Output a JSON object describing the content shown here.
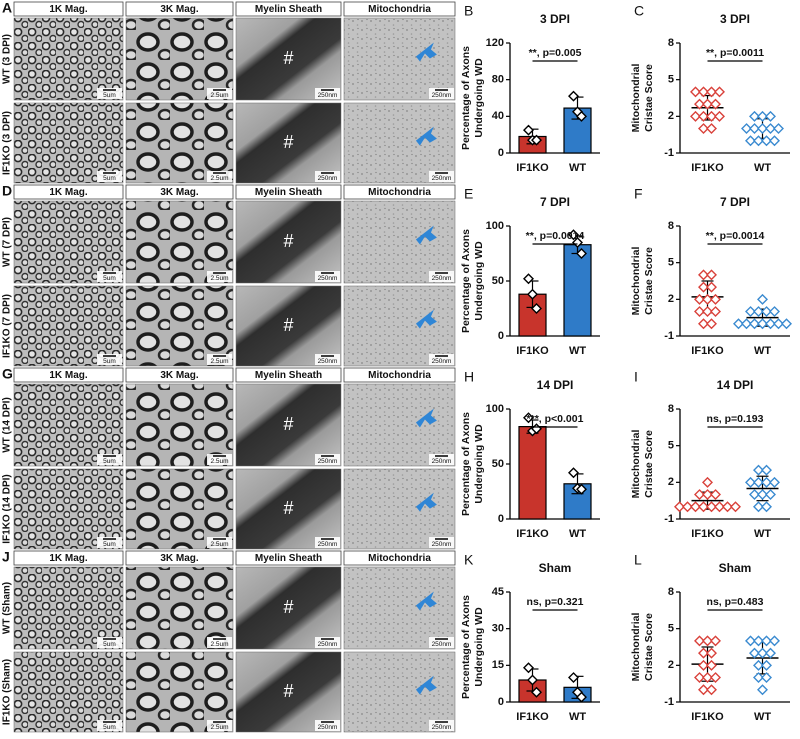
{
  "micrograph_panels": [
    {
      "letter": "A",
      "rows": [
        "WT (3 DPI)",
        "IF1KO (3 DPI)"
      ]
    },
    {
      "letter": "D",
      "rows": [
        "WT (7 DPI)",
        "IF1KO (7 DPI)"
      ]
    },
    {
      "letter": "G",
      "rows": [
        "WT (14 DPI)",
        "IF1KO (14 DPI)"
      ]
    },
    {
      "letter": "J",
      "rows": [
        "WT (Sham)",
        "IF1KO (Sham)"
      ]
    }
  ],
  "column_headers": [
    "1K Mag.",
    "3K Mag.",
    "Myelin Sheath",
    "Mitochondria"
  ],
  "scale_bars": [
    "5um",
    "2.5um",
    "250nm",
    "250nm"
  ],
  "myelin_marker": "#",
  "chart_data": [
    {
      "type": "bar",
      "letter": "B",
      "title": "3 DPI",
      "ylabel": [
        "Percentage of Axons",
        "Undergoing WD"
      ],
      "categories": [
        "IF1KO",
        "WT"
      ],
      "colors": [
        "#c8342c",
        "#2f7bc8"
      ],
      "values": [
        18,
        49
      ],
      "errors": [
        8,
        12
      ],
      "points": [
        [
          25,
          14,
          14
        ],
        [
          62,
          45,
          40
        ]
      ],
      "annotation": "**, p=0.005",
      "ylim": [
        0,
        120
      ],
      "yticks": [
        0,
        40,
        80,
        120
      ]
    },
    {
      "type": "scatter",
      "letter": "C",
      "title": "3 DPI",
      "ylabel": [
        "Mitochondrial",
        "Cristae Score"
      ],
      "categories": [
        "IF1KO",
        "WT"
      ],
      "colors": [
        "#d9413a",
        "#3a8ad0"
      ],
      "values": [
        2.7,
        1.0
      ],
      "errors": [
        1.0,
        0.8
      ],
      "points": [
        [
          4,
          4,
          4,
          4,
          3,
          3,
          3,
          2,
          2,
          2,
          2,
          1,
          1
        ],
        [
          2,
          2,
          2,
          1,
          1,
          1,
          1,
          1,
          0,
          0,
          0,
          0
        ]
      ],
      "annotation": "**, p=0.0011",
      "ylim": [
        -1,
        8
      ],
      "yticks": [
        -1,
        2,
        5,
        8
      ]
    },
    {
      "type": "bar",
      "letter": "E",
      "title": "7 DPI",
      "ylabel": [
        "Percentage of Axons",
        "Undergoing WD"
      ],
      "categories": [
        "IF1KO",
        "WT"
      ],
      "colors": [
        "#c8342c",
        "#2f7bc8"
      ],
      "values": [
        38,
        83
      ],
      "errors": [
        12,
        8
      ],
      "points": [
        [
          52,
          38,
          25
        ],
        [
          92,
          85,
          75
        ]
      ],
      "annotation": "**, p=0.0014",
      "ylim": [
        0,
        100
      ],
      "yticks": [
        0,
        50,
        100
      ]
    },
    {
      "type": "scatter",
      "letter": "F",
      "title": "7 DPI",
      "ylabel": [
        "Mitochondrial",
        "Cristae Score"
      ],
      "categories": [
        "IF1KO",
        "WT"
      ],
      "colors": [
        "#d9413a",
        "#3a8ad0"
      ],
      "values": [
        2.2,
        0.5
      ],
      "errors": [
        1.3,
        0.7
      ],
      "points": [
        [
          4,
          4,
          3,
          3,
          2,
          2,
          2,
          1,
          1,
          1,
          0,
          0
        ],
        [
          2,
          1,
          1,
          1,
          1,
          0,
          0,
          0,
          0,
          0,
          0,
          0
        ]
      ],
      "annotation": "**, p=0.0014",
      "ylim": [
        -1,
        8
      ],
      "yticks": [
        -1,
        2,
        5,
        8
      ]
    },
    {
      "type": "bar",
      "letter": "H",
      "title": "14 DPI",
      "ylabel": [
        "Percentage of Axons",
        "Undergoing WD"
      ],
      "categories": [
        "IF1KO",
        "WT"
      ],
      "colors": [
        "#c8342c",
        "#2f7bc8"
      ],
      "values": [
        84,
        32
      ],
      "errors": [
        6,
        9
      ],
      "points": [
        [
          92,
          80,
          82
        ],
        [
          42,
          28,
          27
        ]
      ],
      "annotation": "***, p<0.001",
      "ylim": [
        0,
        100
      ],
      "yticks": [
        0,
        50,
        100
      ]
    },
    {
      "type": "scatter",
      "letter": "I",
      "title": "14 DPI",
      "ylabel": [
        "Mitochondrial",
        "Cristae Score"
      ],
      "categories": [
        "IF1KO",
        "WT"
      ],
      "colors": [
        "#d9413a",
        "#3a8ad0"
      ],
      "values": [
        0.5,
        1.5
      ],
      "errors": [
        0.7,
        1.0
      ],
      "points": [
        [
          2,
          1,
          1,
          1,
          0,
          0,
          0,
          0,
          0,
          0,
          0,
          0
        ],
        [
          3,
          3,
          2,
          2,
          2,
          2,
          1,
          1,
          1,
          0,
          0
        ]
      ],
      "annotation": "ns, p=0.193",
      "ylim": [
        -1,
        8
      ],
      "yticks": [
        -1,
        2,
        5,
        8
      ]
    },
    {
      "type": "bar",
      "letter": "K",
      "title": "Sham",
      "ylabel": [
        "Percentage of Axons",
        "Undergoing WD"
      ],
      "categories": [
        "IF1KO",
        "WT"
      ],
      "colors": [
        "#c8342c",
        "#2f7bc8"
      ],
      "values": [
        9,
        6
      ],
      "errors": [
        4.5,
        4.5
      ],
      "points": [
        [
          14,
          9,
          4
        ],
        [
          10,
          4,
          2
        ]
      ],
      "annotation": "ns, p=0.321",
      "ylim": [
        0,
        45
      ],
      "yticks": [
        0,
        15,
        30,
        45
      ]
    },
    {
      "type": "scatter",
      "letter": "L",
      "title": "Sham",
      "ylabel": [
        "Mitochondrial",
        "Cristae Score"
      ],
      "categories": [
        "IF1KO",
        "WT"
      ],
      "colors": [
        "#d9413a",
        "#3a8ad0"
      ],
      "values": [
        2.1,
        2.6
      ],
      "errors": [
        1.4,
        1.3
      ],
      "points": [
        [
          4,
          4,
          4,
          3,
          3,
          2,
          2,
          1,
          1,
          1,
          0,
          0
        ],
        [
          4,
          4,
          4,
          4,
          3,
          3,
          3,
          2,
          2,
          1,
          1,
          0
        ]
      ],
      "annotation": "ns, p=0.483",
      "ylim": [
        -1,
        8
      ],
      "yticks": [
        -1,
        2,
        5,
        8
      ]
    }
  ]
}
